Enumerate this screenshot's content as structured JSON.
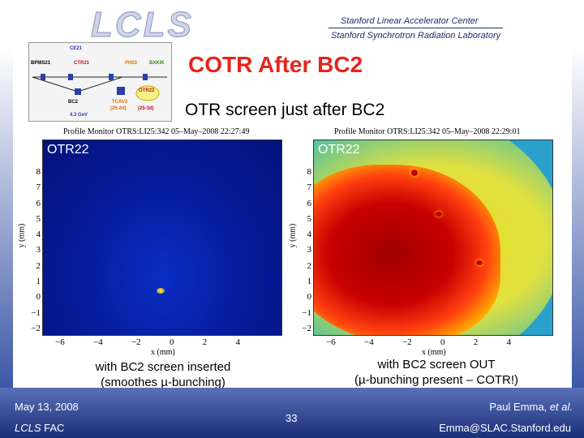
{
  "header": {
    "logo_text": "LCLS",
    "lab_name_1": "Stanford Linear Accelerator Center",
    "lab_name_2": "Stanford Synchrotron Radiation Laboratory"
  },
  "schematic": {
    "labels": [
      "CE21",
      "BPMS21",
      "CTR21",
      "PH03",
      "BXKIK",
      "BC2",
      "TCAV3",
      "(25-2d)",
      "OTR22",
      "(25-3d)",
      "4.3 GeV"
    ]
  },
  "slide": {
    "title": "COTR After BC2",
    "subtitle": "OTR screen just after BC2"
  },
  "plots": [
    {
      "header": "Profile Monitor OTRS:LI25:342 05–May–2008 22:27:49",
      "label": "OTR22",
      "y_ticks": [
        "8",
        "7",
        "6",
        "5",
        "4",
        "3",
        "2",
        "1",
        "0",
        "−1",
        "−2"
      ],
      "x_ticks": [
        "−6",
        "−4",
        "−2",
        "0",
        "2",
        "4"
      ],
      "xlabel": "x (mm)",
      "ylabel": "y (mm)",
      "caption_line1": "with BC2 screen inserted",
      "caption_line2": "(smoothes µ-bunching)"
    },
    {
      "header": "Profile Monitor OTRS:LI25:342 05–May–2008 22:29:01",
      "label": "OTR22",
      "y_ticks": [
        "8",
        "7",
        "6",
        "5",
        "4",
        "3",
        "2",
        "1",
        "0",
        "−1",
        "−2"
      ],
      "x_ticks": [
        "−6",
        "−4",
        "−2",
        "0",
        "2",
        "4"
      ],
      "xlabel": "x (mm)",
      "ylabel": "y (mm)",
      "caption_line1": "with BC2 screen OUT",
      "caption_line2": "(µ-bunching present – COTR!)"
    }
  ],
  "footer": {
    "date": "May 13, 2008",
    "org_italic": "LCLS",
    "org_rest": " FAC",
    "page": "33",
    "author_name": "Paul Emma, ",
    "author_etal": "et al.",
    "email": "Emma@SLAC.Stanford.edu"
  }
}
